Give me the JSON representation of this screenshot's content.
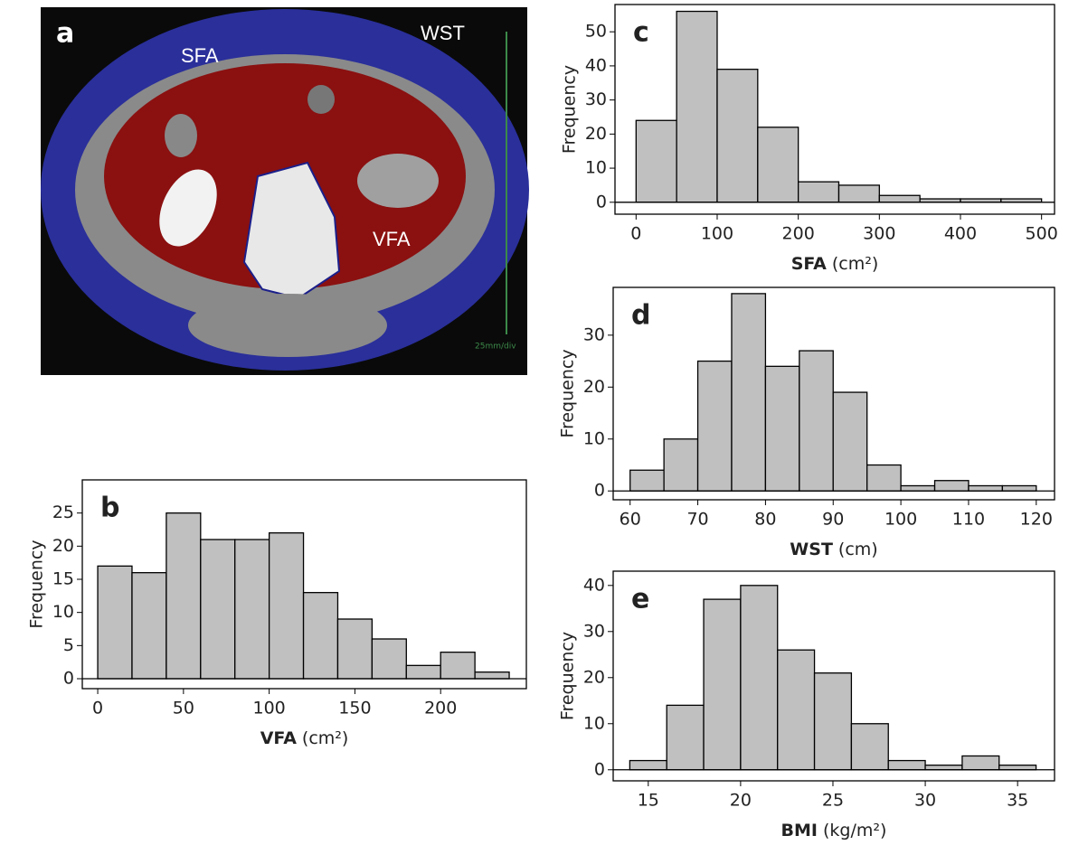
{
  "image": {
    "letter": "a",
    "labels": [
      "SFA",
      "WST",
      "VFA"
    ],
    "scale": "25mm/div"
  },
  "chart_data": [
    {
      "type": "histogram",
      "letter": "b",
      "xlabel": {
        "name": "VFA",
        "unit": "(cm²)"
      },
      "ylabel": "Frequency",
      "bins": [
        0,
        20,
        40,
        60,
        80,
        100,
        120,
        140,
        160,
        180,
        200,
        220,
        240
      ],
      "values": [
        17,
        16,
        25,
        21,
        21,
        22,
        13,
        9,
        6,
        2,
        4,
        1
      ],
      "color": "#c0c0c0",
      "xlim": [
        -9,
        250
      ],
      "ylim": [
        -1.5,
        30
      ],
      "xticks": [
        0,
        50,
        100,
        150,
        200
      ],
      "yticks": [
        0,
        5,
        10,
        15,
        20,
        25
      ]
    },
    {
      "type": "histogram",
      "letter": "c",
      "xlabel": {
        "name": "SFA",
        "unit": "(cm²)"
      },
      "ylabel": "Frequency",
      "bins": [
        0,
        50,
        100,
        150,
        200,
        250,
        300,
        350,
        400,
        450,
        500
      ],
      "values": [
        24,
        56,
        39,
        22,
        6,
        5,
        2,
        1,
        1,
        1
      ],
      "color": "#c0c0c0",
      "xlim": [
        -26,
        516
      ],
      "ylim": [
        -3.5,
        58
      ],
      "xticks": [
        0,
        100,
        200,
        300,
        400,
        500
      ],
      "yticks": [
        0,
        10,
        20,
        30,
        40,
        50
      ]
    },
    {
      "type": "histogram",
      "letter": "d",
      "xlabel": {
        "name": "WST",
        "unit": "(cm)"
      },
      "ylabel": "Frequency",
      "bins": [
        60,
        65,
        70,
        75,
        80,
        85,
        90,
        95,
        100,
        105,
        110,
        115,
        120
      ],
      "values": [
        4,
        10,
        25,
        38,
        24,
        27,
        19,
        5,
        1,
        2,
        1,
        1
      ],
      "color": "#c0c0c0",
      "xlim": [
        57.5,
        122.7
      ],
      "ylim": [
        -1.7,
        39.2
      ],
      "xticks": [
        60,
        70,
        80,
        90,
        100,
        110,
        120
      ],
      "yticks": [
        0,
        10,
        20,
        30
      ]
    },
    {
      "type": "histogram",
      "letter": "e",
      "xlabel": {
        "name": "BMI",
        "unit": "(kg/m²)"
      },
      "ylabel": "Frequency",
      "bins": [
        14,
        16,
        18,
        20,
        22,
        24,
        26,
        28,
        30,
        32,
        34,
        36
      ],
      "values": [
        2,
        14,
        37,
        40,
        26,
        21,
        10,
        2,
        1,
        3,
        1
      ],
      "color": "#c0c0c0",
      "xlim": [
        13.1,
        37
      ],
      "ylim": [
        -2.4,
        43.1
      ],
      "xticks": [
        15,
        20,
        25,
        30,
        35
      ],
      "yticks": [
        0,
        10,
        20,
        30,
        40
      ]
    }
  ]
}
